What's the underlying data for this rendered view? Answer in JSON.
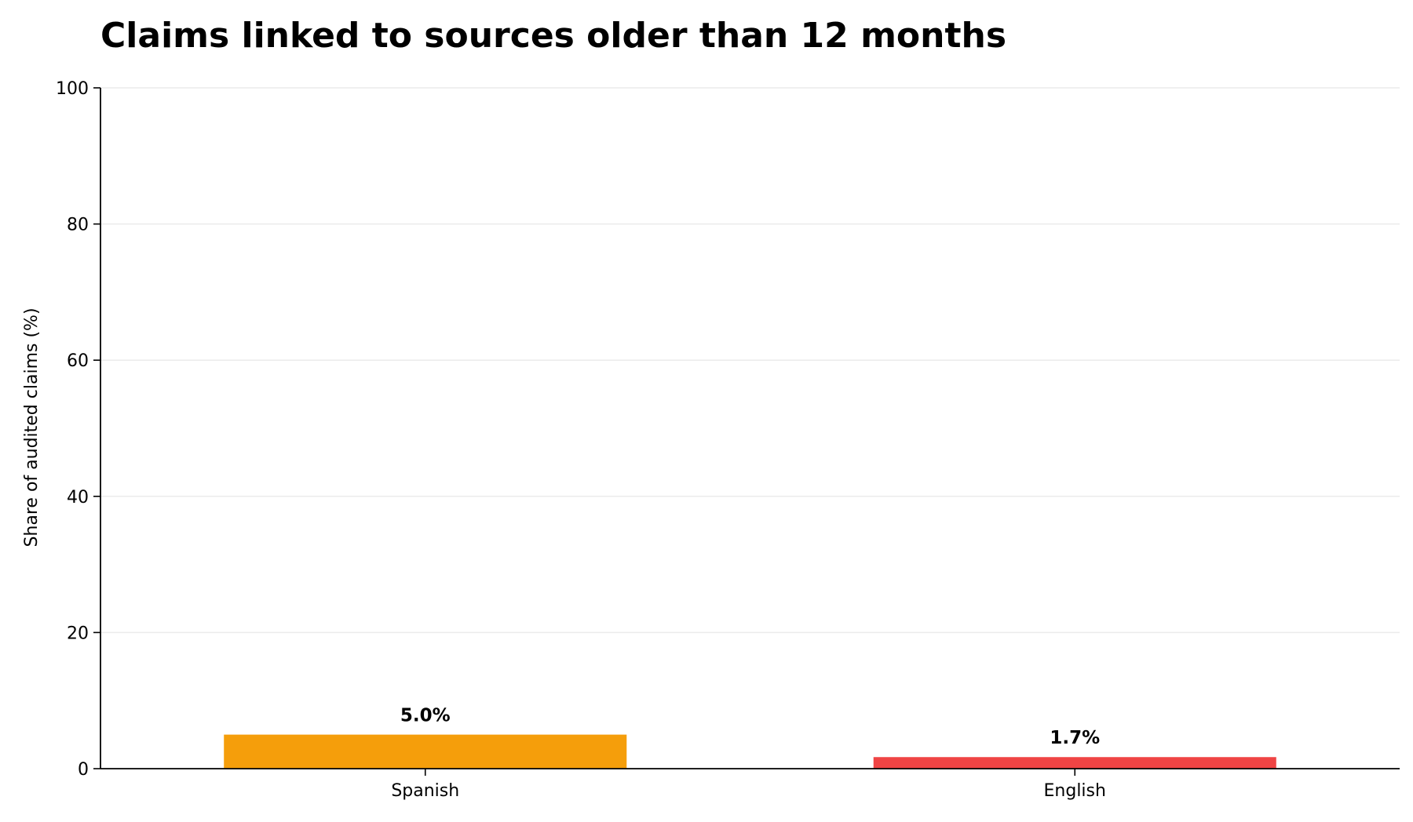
{
  "chart_data": {
    "type": "bar",
    "title": "Claims linked to sources older than 12 months",
    "ylabel": "Share of audited claims (%)",
    "xlabel": "",
    "ylim": [
      0,
      100
    ],
    "yticks": [
      0,
      20,
      40,
      60,
      80,
      100
    ],
    "grid": true,
    "categories": [
      "Spanish",
      "English"
    ],
    "values": [
      5.0,
      1.7
    ],
    "data_labels": [
      "5.0%",
      "1.7%"
    ],
    "colors": [
      "#F59E0B",
      "#EF4444"
    ],
    "grid_color": "#EBEBEB",
    "axis_color": "#000000"
  }
}
